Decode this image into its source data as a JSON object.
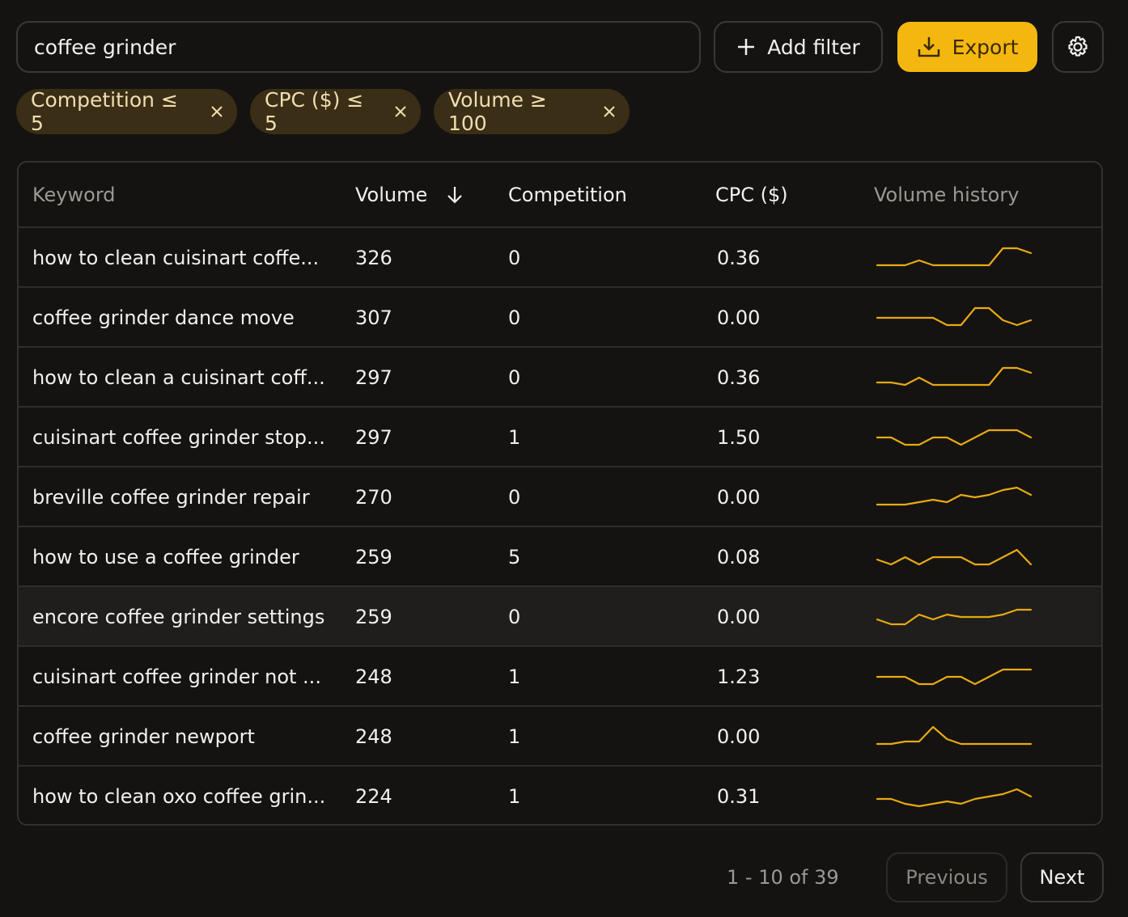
{
  "search": {
    "query": "coffee grinder"
  },
  "toolbar": {
    "add_filter": "Add filter",
    "export": "Export"
  },
  "filters": [
    "Competition ≤ 5",
    "CPC ($) ≤ 5",
    "Volume ≥ 100"
  ],
  "table": {
    "columns": [
      "Keyword",
      "Volume",
      "Competition",
      "CPC ($)",
      "Volume history"
    ],
    "rows": [
      {
        "keyword": "how to clean cuisinart coffe...",
        "volume": 326,
        "competition": 0,
        "cpc": "0.36",
        "history": [
          2,
          2,
          2,
          4,
          2,
          2,
          2,
          2,
          2,
          9,
          9,
          7
        ]
      },
      {
        "keyword": "coffee grinder dance move",
        "volume": 307,
        "competition": 0,
        "cpc": "0.00",
        "history": [
          5,
          5,
          5,
          5,
          5,
          2,
          2,
          9,
          9,
          4,
          2,
          4
        ]
      },
      {
        "keyword": "how to clean a cuisinart coff...",
        "volume": 297,
        "competition": 0,
        "cpc": "0.36",
        "history": [
          3,
          3,
          2,
          5,
          2,
          2,
          2,
          2,
          2,
          9,
          9,
          7
        ]
      },
      {
        "keyword": "cuisinart coffee grinder stop...",
        "volume": 297,
        "competition": 1,
        "cpc": "1.50",
        "history": [
          5,
          5,
          2,
          2,
          5,
          5,
          2,
          5,
          8,
          8,
          8,
          5
        ]
      },
      {
        "keyword": "breville coffee grinder repair",
        "volume": 270,
        "competition": 0,
        "cpc": "0.00",
        "history": [
          2,
          2,
          2,
          3,
          4,
          3,
          6,
          5,
          6,
          8,
          9,
          6
        ]
      },
      {
        "keyword": "how to use a coffee grinder",
        "volume": 259,
        "competition": 5,
        "cpc": "0.08",
        "history": [
          4,
          2,
          5,
          2,
          5,
          5,
          5,
          2,
          2,
          5,
          8,
          2
        ]
      },
      {
        "keyword": "encore coffee grinder settings",
        "volume": 259,
        "competition": 0,
        "cpc": "0.00",
        "history": [
          4,
          2,
          2,
          6,
          4,
          6,
          5,
          5,
          5,
          6,
          8,
          8
        ]
      },
      {
        "keyword": "cuisinart coffee grinder not ...",
        "volume": 248,
        "competition": 1,
        "cpc": "1.23",
        "history": [
          5,
          5,
          5,
          2,
          2,
          5,
          5,
          2,
          5,
          8,
          8,
          8
        ]
      },
      {
        "keyword": "coffee grinder newport",
        "volume": 248,
        "competition": 1,
        "cpc": "0.00",
        "history": [
          2,
          2,
          3,
          3,
          9,
          4,
          2,
          2,
          2,
          2,
          2,
          2
        ]
      },
      {
        "keyword": "how to clean oxo coffee grin...",
        "volume": 224,
        "competition": 1,
        "cpc": "0.31",
        "history": [
          4,
          4,
          2,
          1,
          2,
          3,
          2,
          4,
          5,
          6,
          8,
          5
        ]
      }
    ]
  },
  "pagination": {
    "summary": "1 - 10 of 39",
    "previous": "Previous",
    "next": "Next"
  }
}
